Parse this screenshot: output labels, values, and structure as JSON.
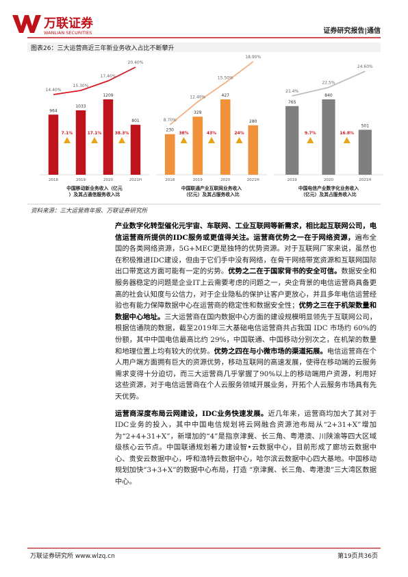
{
  "header": {
    "logo": "万联证券",
    "logo_en": "WANLIAN SECURITIES",
    "report": "证券研究报告|通信"
  },
  "figure": {
    "title": "图表26：三大运营商近三年新业务收入占比不断攀升"
  },
  "chart_data": [
    {
      "type": "bar",
      "title": "中国移动新业务收入（亿元）及其占通信服务收入比",
      "categories": [
        "2018",
        "2019",
        "2020",
        "2021H"
      ],
      "series": [
        {
          "color": "#c0121b",
          "values": [
            964,
            1033,
            1209,
            801
          ]
        },
        {
          "color": "#d7191f",
          "values": [
            14.4,
            15.3,
            17.4,
            20.4
          ],
          "value_labels": [
            "14.40%",
            "15.30%",
            "17.40%",
            "20.40%"
          ]
        },
        {
          "color": "#e8a317",
          "values": [
            null,
            7.1,
            17.1,
            38.3
          ],
          "value_labels": [
            null,
            "7.1%",
            "17.1%",
            "38.3%"
          ]
        }
      ]
    },
    {
      "type": "bar",
      "title": "中国联通产业互联网业务收入（亿元）及其占服务收入比",
      "categories": [
        "2018",
        "2019",
        "2020",
        "2021H"
      ],
      "series": [
        {
          "color": "#f0923b",
          "values": [
            230,
            329,
            427,
            280
          ]
        },
        {
          "color": "#f4b183",
          "values": [
            8.7,
            12.4,
            15.5,
            18.9
          ],
          "value_labels": [
            "8.70%",
            "12.40%",
            "15.50%",
            "18.90%"
          ]
        },
        {
          "color": "#e8a317",
          "values": [
            null,
            38,
            43,
            24
          ],
          "value_labels": [
            null,
            "38%",
            "43%",
            "24%"
          ]
        }
      ]
    },
    {
      "type": "bar",
      "title": "中国电信产业数字化业务收入（亿元）及其占服务收入比",
      "categories": [
        "2019",
        "2020",
        "2021H"
      ],
      "series": [
        {
          "color": "#7f7f7f",
          "values": [
            765,
            840,
            501
          ]
        },
        {
          "color": "#bfbfbf",
          "values": [
            21.4,
            22.5,
            24.6
          ],
          "value_labels": [
            "21.4%",
            "22.5%",
            "24.60%"
          ]
        },
        {
          "color": "#e8a317",
          "values": [
            null,
            9.7,
            16.8
          ],
          "value_labels": [
            null,
            "9.7%",
            "16.8%"
          ]
        }
      ]
    }
  ],
  "source": "资料来源：三大运营商年报、万联证券研究所",
  "paragraphs": [
    [
      {
        "text": "产业数字化转型催化元宇宙、车联网、工业互联网等新需求，相比起互联网公司，电信运营商所提供的IDC服务或更值得关注。运营商优势之一在于网络资源，",
        "bold": true
      },
      {
        "text": "遍布全国的各类网络资源，5G+MEC更是独特的优势资源。对于互联网厂家来说，虽然也在积极推进IDC建设，但由于它们手中没有网络，在骨干网络带宽资源和互联网国际出口带宽这方面可能有一定的劣势。",
        "bold": false
      },
      {
        "text": "优势之二在于国家背书的安全可信。",
        "bold": true
      },
      {
        "text": "数据安全和服务器稳定的问题是企业IT上云需要考虑的问题之一，央企背景的电信运营商具备更高的社会认知度与公信力，对于企业隐私的保护让客户更放心，并且多年电信运营经验也有能力保障数据中心在运营商的稳定性和数据安全性；",
        "bold": false
      },
      {
        "text": "优势之三在于机架数量和数据中心地址。",
        "bold": true
      },
      {
        "text": "三大运营商在国内数据中心方面的建设规模明显领先于互联网公司，根据信通院的数据，截至2019年三大基础电信运营商共占我国 IDC 市场约 60%的份额，其中中国电信最高比约 29%，中国联通、中国移动分别次之，在机架的数量和地理位置上均有较大的优势。",
        "bold": false
      },
      {
        "text": "优势之四在与小微市场的渠道拓展。",
        "bold": true
      },
      {
        "text": "电信运营商在个人用户端方面拥有巨大的资源优势，移动互联网的高速发展，使得在移动端的云服务需求变得十分迫切，而三大运营商几乎掌握了90%以上的移动端用户资源，利用好这些资源，对于电信运营商在个人云服务领域开展业务，开拓个人云服务市场具有先天优势。",
        "bold": false
      }
    ],
    [
      {
        "text": "运营商深度布局云网建设，IDC业务快速发展。",
        "bold": true
      },
      {
        "text": "近几年来，运营商均加大了其对于IDC业务的投入，其中中国电信规划将云网融合资源池布局从“2+31+X”增加为“2+4+31+X”，新增加的“4”是指京津冀、长三角、粤港澳、川陕渝等四大区域级核心云节点。中国联通规划着力建设智•云数据中心，目前形成了廊坊云数据中心、贵安云数据中心，呼和浩特云数据中心，哈尔滨云数据中心四大基地。中国移动规划加快“3+3+X”的数据中心布局，打造 “京津冀、长三角、粤港澳”三大湾区数据中心。",
        "bold": false
      }
    ]
  ],
  "footer": {
    "left": "万联证券研究所 www.wlzq.cn",
    "right": "第19页共36页"
  }
}
